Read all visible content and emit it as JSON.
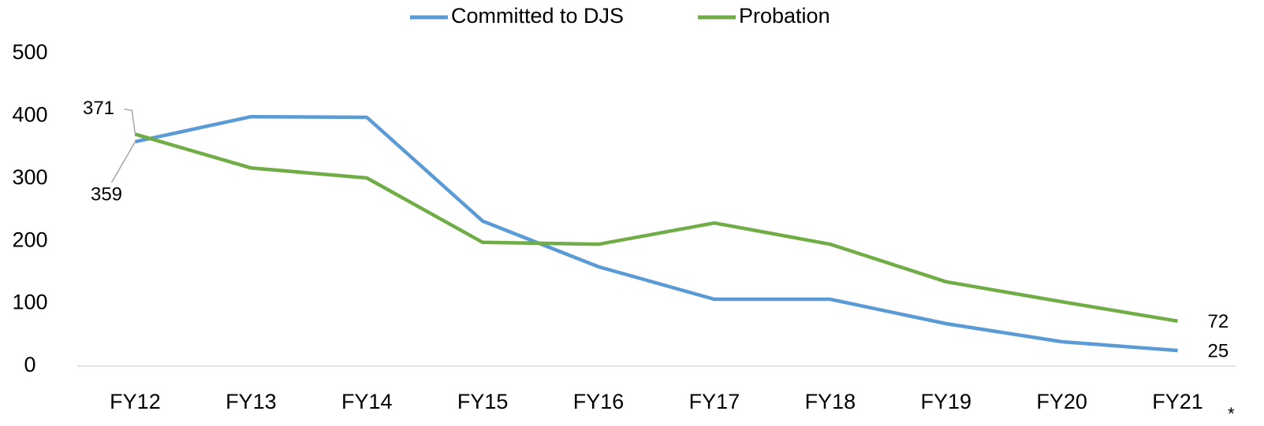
{
  "chart_data": {
    "type": "line",
    "categories": [
      "FY12",
      "FY13",
      "FY14",
      "FY15",
      "FY16",
      "FY17",
      "FY18",
      "FY19",
      "FY20",
      "FY21"
    ],
    "series": [
      {
        "name": "Committed to DJS",
        "color": "#5b9bd5",
        "values": [
          359,
          399,
          398,
          232,
          159,
          107,
          107,
          68,
          39,
          25
        ]
      },
      {
        "name": "Probation",
        "color": "#70ad47",
        "values": [
          371,
          317,
          301,
          198,
          195,
          229,
          195,
          135,
          103,
          72
        ]
      }
    ],
    "ylim": [
      0,
      500
    ],
    "yticks": [
      0,
      100,
      200,
      300,
      400,
      500
    ],
    "grid": false,
    "legend": "top",
    "annotation": "*"
  }
}
